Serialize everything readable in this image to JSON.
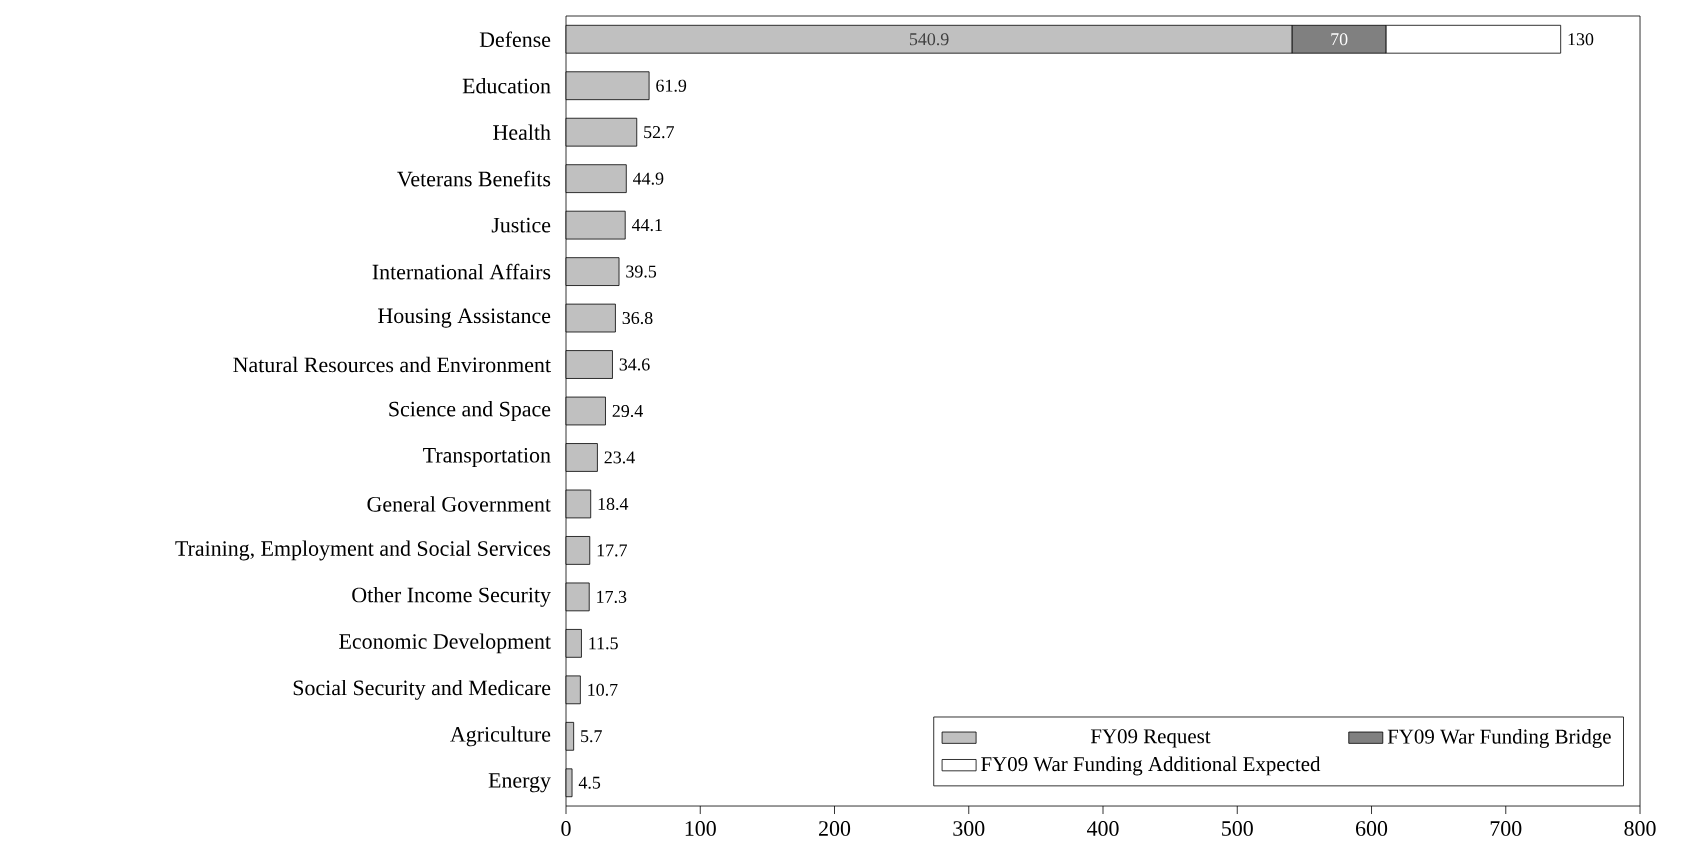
{
  "chart_data": {
    "type": "bar",
    "orientation": "horizontal",
    "stacked": true,
    "data_labels": true,
    "legend": "bottom right",
    "categories": [
      "Defense",
      "Education",
      "Health",
      "Veterans Benefits",
      "Justice",
      "International Affairs",
      "Housing Assistance",
      "Natural Resources and Environment",
      "Science and Space",
      "Transportation",
      "General Government",
      "Training, Employment and Social Services",
      "Other Income Security",
      "Economic Development",
      "Social Security and Medicare",
      "Agriculture",
      "Energy"
    ],
    "series": [
      {
        "name": "FY09 Request",
        "color": "#c0c0c0",
        "values": [
          540.9,
          61.9,
          52.7,
          44.9,
          44.1,
          39.5,
          36.8,
          34.6,
          29.4,
          23.4,
          18.4,
          17.7,
          17.3,
          11.5,
          10.7,
          5.7,
          4.5
        ]
      },
      {
        "name": "FY09 War Funding Bridge",
        "color": "#808080",
        "values": [
          70,
          null,
          null,
          null,
          null,
          null,
          null,
          null,
          null,
          null,
          null,
          null,
          null,
          null,
          null,
          null,
          null
        ]
      },
      {
        "name": "FY09 War Funding Additional Expected",
        "color": "#ffffff",
        "values": [
          130,
          null,
          null,
          null,
          null,
          null,
          null,
          null,
          null,
          null,
          null,
          null,
          null,
          null,
          null,
          null,
          null
        ]
      }
    ],
    "xlim": [
      0,
      800
    ],
    "xticks": [
      0,
      100,
      200,
      300,
      400,
      500,
      600,
      700,
      800
    ]
  }
}
